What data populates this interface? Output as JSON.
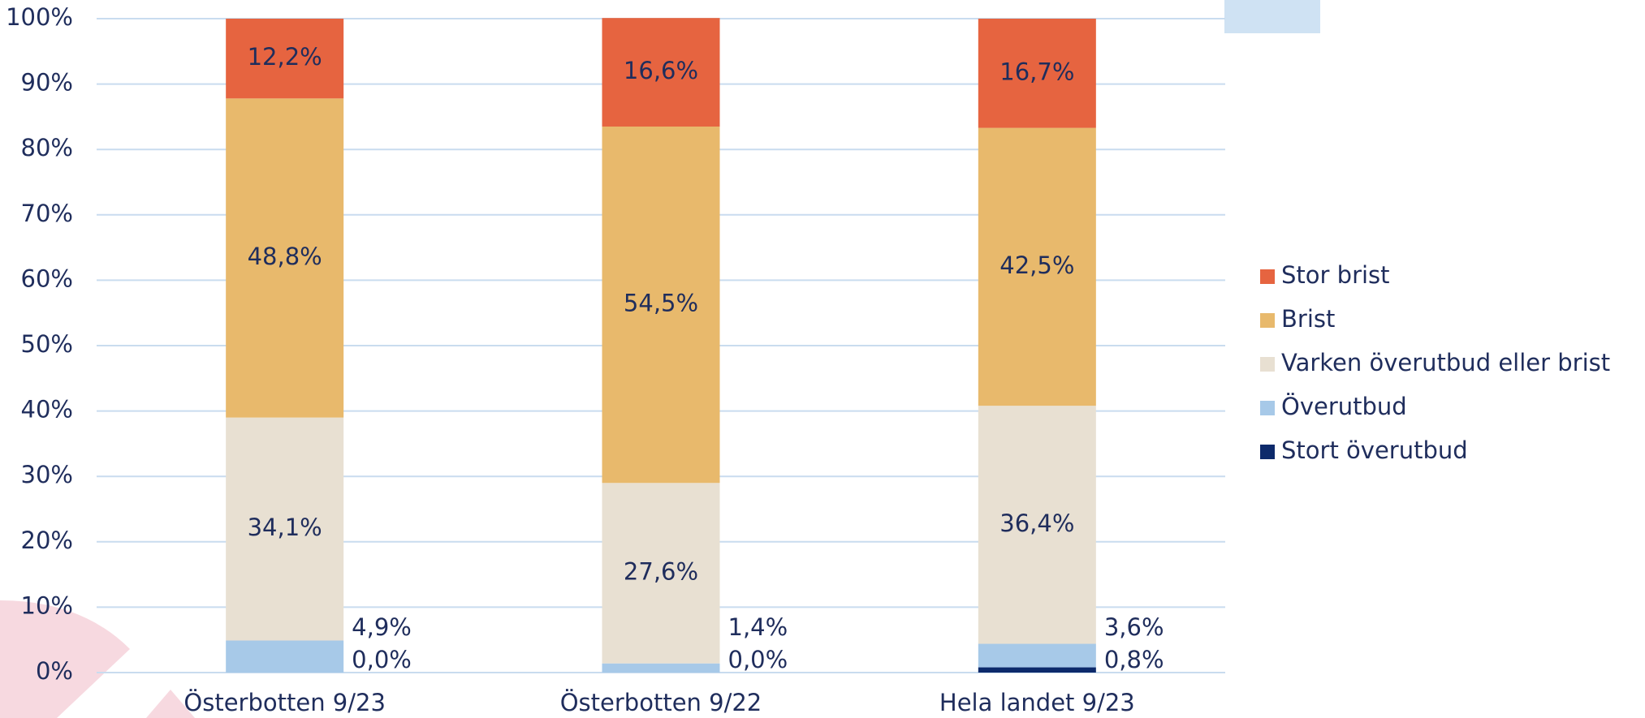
{
  "chart_data": {
    "type": "stacked_bar",
    "categories": [
      "Österbotten 9/23",
      "Österbotten 9/22",
      "Hela landet 9/23"
    ],
    "series": [
      {
        "name": "Stort överutbud",
        "color": "#0d2a6b",
        "values": [
          0.0,
          0.0,
          0.8
        ],
        "value_labels": [
          "0,0%",
          "0,0%",
          "0,8%"
        ]
      },
      {
        "name": "Överutbud",
        "color": "#a7c9e8",
        "values": [
          4.9,
          1.4,
          3.6
        ],
        "value_labels": [
          "4,9%",
          "1,4%",
          "3,6%"
        ]
      },
      {
        "name": "Varken överutbud eller brist",
        "color": "#e8e0d2",
        "values": [
          34.1,
          27.6,
          36.4
        ],
        "value_labels": [
          "34,1%",
          "27,6%",
          "36,4%"
        ]
      },
      {
        "name": "Brist",
        "color": "#e8b96c",
        "values": [
          48.8,
          54.5,
          42.5
        ],
        "value_labels": [
          "48,8%",
          "54,5%",
          "42,5%"
        ]
      },
      {
        "name": "Stor brist",
        "color": "#e66440",
        "values": [
          12.2,
          16.6,
          16.7
        ],
        "value_labels": [
          "12,2%",
          "16,6%",
          "16,7%"
        ]
      }
    ],
    "ylim": [
      0,
      100
    ],
    "yticks": [
      {
        "value": 0,
        "label": "0%"
      },
      {
        "value": 10,
        "label": "10%"
      },
      {
        "value": 20,
        "label": "20%"
      },
      {
        "value": 30,
        "label": "30%"
      },
      {
        "value": 40,
        "label": "40%"
      },
      {
        "value": 50,
        "label": "50%"
      },
      {
        "value": 60,
        "label": "60%"
      },
      {
        "value": 70,
        "label": "70%"
      },
      {
        "value": 80,
        "label": "80%"
      },
      {
        "value": 90,
        "label": "90%"
      },
      {
        "value": 100,
        "label": "100%"
      }
    ],
    "grid": true,
    "legend": "right"
  }
}
